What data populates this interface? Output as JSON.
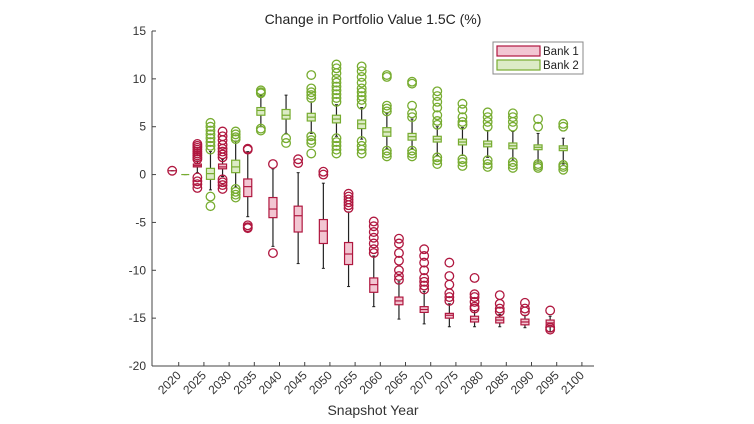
{
  "chart_data": {
    "type": "boxplot",
    "title": "Change in Portfolio Value 1.5C (%)",
    "xlabel": "Snapshot Year",
    "ylabel": "",
    "xlim": [
      2014.7,
      2102.4
    ],
    "ylim": [
      -20,
      15
    ],
    "xticks": [
      2020,
      2025,
      2030,
      2035,
      2040,
      2045,
      2050,
      2055,
      2060,
      2065,
      2070,
      2075,
      2080,
      2085,
      2090,
      2095,
      2100
    ],
    "yticks": [
      15,
      10,
      5,
      0,
      -5,
      -10,
      -15,
      -20
    ],
    "grid": false,
    "legend_position": "top-right",
    "series": [
      {
        "name": "Bank 1",
        "edge_color": "#b0173f",
        "fill_color": "#f2c6d2",
        "boxes": [
          {
            "x": 2020,
            "q1": 0.4,
            "median": 0.4,
            "q3": 0.4,
            "whisker_low": 0.4,
            "whisker_high": 0.4,
            "outliers": [
              0.4
            ]
          },
          {
            "x": 2025,
            "q1": 0.8,
            "median": 0.93,
            "q3": 1.1,
            "whisker_low": 0.2,
            "whisker_high": 1.4,
            "outliers": [
              3.2,
              3.0,
              2.8,
              2.6,
              2.4,
              2.2,
              2.0,
              1.8,
              1.6,
              -0.3,
              -0.7,
              -1.0,
              -1.4
            ]
          },
          {
            "x": 2030,
            "q1": 0.6,
            "median": 0.8,
            "q3": 1.1,
            "whisker_low": -0.2,
            "whisker_high": 1.6,
            "outliers": [
              1.8,
              2.1,
              2.4,
              2.7,
              3.1,
              3.6,
              4.0,
              4.5,
              -0.5,
              -0.8,
              -1.1,
              -1.5
            ]
          },
          {
            "x": 2035,
            "q1": -2.3,
            "median": -1.26,
            "q3": -0.46,
            "whisker_low": -4.4,
            "whisker_high": 2.4,
            "outliers": [
              2.6,
              2.7,
              -5.3,
              -5.5,
              -5.6
            ]
          },
          {
            "x": 2040,
            "q1": -4.5,
            "median": -3.6,
            "q3": -2.4,
            "whisker_low": -7.5,
            "whisker_high": 0.6,
            "outliers": [
              1.1,
              -8.2
            ]
          },
          {
            "x": 2045,
            "q1": -6.0,
            "median": -4.3,
            "q3": -3.3,
            "whisker_low": -9.3,
            "whisker_high": 0.2,
            "outliers": [
              1.2,
              1.6
            ]
          },
          {
            "x": 2050,
            "q1": -7.2,
            "median": -5.9,
            "q3": -4.7,
            "whisker_low": -9.8,
            "whisker_high": -0.9,
            "outliers": [
              0.0,
              0.3
            ]
          },
          {
            "x": 2055,
            "q1": -9.4,
            "median": -8.3,
            "q3": -7.1,
            "whisker_low": -11.7,
            "whisker_high": -3.9,
            "outliers": [
              -2.0,
              -2.3,
              -2.6,
              -2.9,
              -3.2,
              -3.5
            ]
          },
          {
            "x": 2060,
            "q1": -12.3,
            "median": -11.5,
            "q3": -10.8,
            "whisker_low": -13.8,
            "whisker_high": -8.5,
            "outliers": [
              -4.9,
              -5.4,
              -6.0,
              -6.6,
              -7.2,
              -7.8,
              -8.2
            ]
          },
          {
            "x": 2065,
            "q1": -13.6,
            "median": -13.2,
            "q3": -12.8,
            "whisker_low": -15.1,
            "whisker_high": -11.2,
            "outliers": [
              -6.7,
              -7.2,
              -8.2,
              -9.0,
              -10.0,
              -10.6,
              -11.0
            ]
          },
          {
            "x": 2070,
            "q1": -14.4,
            "median": -14.1,
            "q3": -13.8,
            "whisker_low": -15.6,
            "whisker_high": -12.2,
            "outliers": [
              -7.8,
              -8.5,
              -9.2,
              -10.0,
              -10.8,
              -11.2,
              -11.6,
              -12.0
            ]
          },
          {
            "x": 2075,
            "q1": -15.0,
            "median": -14.7,
            "q3": -14.5,
            "whisker_low": -15.9,
            "whisker_high": -13.5,
            "outliers": [
              -9.2,
              -10.6,
              -11.5,
              -12.4,
              -12.8,
              -13.2
            ]
          },
          {
            "x": 2080,
            "q1": -15.4,
            "median": -15.1,
            "q3": -14.8,
            "whisker_low": -15.9,
            "whisker_high": -14.2,
            "outliers": [
              -10.8,
              -12.5,
              -12.8,
              -13.3,
              -13.8,
              -14.0
            ]
          },
          {
            "x": 2085,
            "q1": -15.5,
            "median": -15.2,
            "q3": -14.9,
            "whisker_low": -15.9,
            "whisker_high": -14.6,
            "outliers": [
              -12.6,
              -13.5,
              -14.0,
              -14.3
            ]
          },
          {
            "x": 2090,
            "q1": -15.7,
            "median": -15.4,
            "q3": -15.1,
            "whisker_low": -16.0,
            "whisker_high": -14.7,
            "outliers": [
              -13.4,
              -14.0,
              -14.3
            ]
          },
          {
            "x": 2095,
            "q1": -15.9,
            "median": -15.5,
            "q3": -15.2,
            "whisker_low": -16.4,
            "whisker_high": -14.8,
            "outliers": [
              -14.2,
              -16.0,
              -16.2
            ]
          }
        ]
      },
      {
        "name": "Bank 2",
        "edge_color": "#77ac30",
        "fill_color": "#dcebc6",
        "boxes": [
          {
            "x": 2020,
            "q1": 0,
            "median": 0,
            "q3": 0,
            "whisker_low": 0,
            "whisker_high": 0,
            "outliers": []
          },
          {
            "x": 2025,
            "q1": -0.5,
            "median": 0.1,
            "q3": 0.65,
            "whisker_low": -1.6,
            "whisker_high": 2.4,
            "outliers": [
              2.6,
              3.0,
              3.4,
              3.8,
              4.2,
              4.6,
              5.0,
              5.4,
              -2.3,
              -3.3
            ]
          },
          {
            "x": 2030,
            "q1": 0.2,
            "median": 0.8,
            "q3": 1.5,
            "whisker_low": -1.3,
            "whisker_high": 3.5,
            "outliers": [
              3.7,
              3.9,
              4.2,
              4.5,
              -1.5,
              -1.8,
              -2.1,
              -2.4
            ]
          },
          {
            "x": 2035,
            "q1": 6.2,
            "median": 6.7,
            "q3": 7.0,
            "whisker_low": 5.0,
            "whisker_high": 8.3,
            "outliers": [
              8.5,
              8.6,
              8.8,
              4.8,
              4.6
            ]
          },
          {
            "x": 2040,
            "q1": 5.8,
            "median": 6.2,
            "q3": 6.8,
            "whisker_low": 4.3,
            "whisker_high": 8.3,
            "outliers": [
              3.8,
              3.3
            ]
          },
          {
            "x": 2045,
            "q1": 5.6,
            "median": 6.0,
            "q3": 6.4,
            "whisker_low": 4.3,
            "whisker_high": 7.6,
            "outliers": [
              8.0,
              8.3,
              8.6,
              9.0,
              10.4,
              4.0,
              3.6,
              3.3,
              2.2
            ]
          },
          {
            "x": 2050,
            "q1": 5.4,
            "median": 5.8,
            "q3": 6.2,
            "whisker_low": 4.0,
            "whisker_high": 7.3,
            "outliers": [
              7.6,
              8.0,
              8.4,
              8.8,
              9.2,
              9.6,
              10.0,
              10.6,
              11.1,
              11.5,
              3.8,
              3.4,
              3.0,
              2.6,
              2.2
            ]
          },
          {
            "x": 2055,
            "q1": 4.8,
            "median": 5.3,
            "q3": 5.7,
            "whisker_low": 3.7,
            "whisker_high": 7.0,
            "outliers": [
              7.3,
              7.8,
              8.2,
              8.6,
              9.0,
              9.6,
              10.2,
              10.8,
              11.3,
              3.5,
              3.0,
              2.6,
              2.2
            ]
          },
          {
            "x": 2060,
            "q1": 4.0,
            "median": 4.45,
            "q3": 4.9,
            "whisker_low": 2.7,
            "whisker_high": 6.4,
            "outliers": [
              6.6,
              6.9,
              7.2,
              10.2,
              10.4,
              2.5,
              2.2,
              1.9
            ]
          },
          {
            "x": 2065,
            "q1": 3.6,
            "median": 3.96,
            "q3": 4.3,
            "whisker_low": 2.7,
            "whisker_high": 5.8,
            "outliers": [
              6.0,
              6.4,
              7.2,
              9.5,
              9.7,
              2.5,
              2.2,
              1.9
            ]
          },
          {
            "x": 2070,
            "q1": 3.4,
            "median": 3.7,
            "q3": 4.0,
            "whisker_low": 2.0,
            "whisker_high": 5.0,
            "outliers": [
              5.2,
              5.6,
              6.2,
              7.0,
              7.6,
              8.2,
              8.7,
              1.8,
              1.5,
              1.1
            ]
          },
          {
            "x": 2075,
            "q1": 3.1,
            "median": 3.4,
            "q3": 3.7,
            "whisker_low": 2.0,
            "whisker_high": 4.9,
            "outliers": [
              5.2,
              5.5,
              6.0,
              6.8,
              7.4,
              1.6,
              1.3,
              0.9
            ]
          },
          {
            "x": 2080,
            "q1": 2.9,
            "median": 3.2,
            "q3": 3.5,
            "whisker_low": 1.8,
            "whisker_high": 4.6,
            "outliers": [
              5.0,
              5.5,
              6.0,
              6.5,
              1.5,
              1.1,
              0.8
            ]
          },
          {
            "x": 2085,
            "q1": 2.7,
            "median": 3.0,
            "q3": 3.3,
            "whisker_low": 1.5,
            "whisker_high": 4.5,
            "outliers": [
              5.0,
              5.5,
              6.0,
              6.4,
              1.3,
              1.0,
              0.7
            ]
          },
          {
            "x": 2090,
            "q1": 2.6,
            "median": 2.85,
            "q3": 3.1,
            "whisker_low": 1.3,
            "whisker_high": 4.3,
            "outliers": [
              5.0,
              5.8,
              1.1,
              0.9,
              0.7
            ]
          },
          {
            "x": 2095,
            "q1": 2.5,
            "median": 2.75,
            "q3": 3.0,
            "whisker_low": 1.1,
            "whisker_high": 3.8,
            "outliers": [
              5.0,
              5.3,
              1.0,
              0.8,
              0.5
            ]
          }
        ]
      }
    ]
  }
}
